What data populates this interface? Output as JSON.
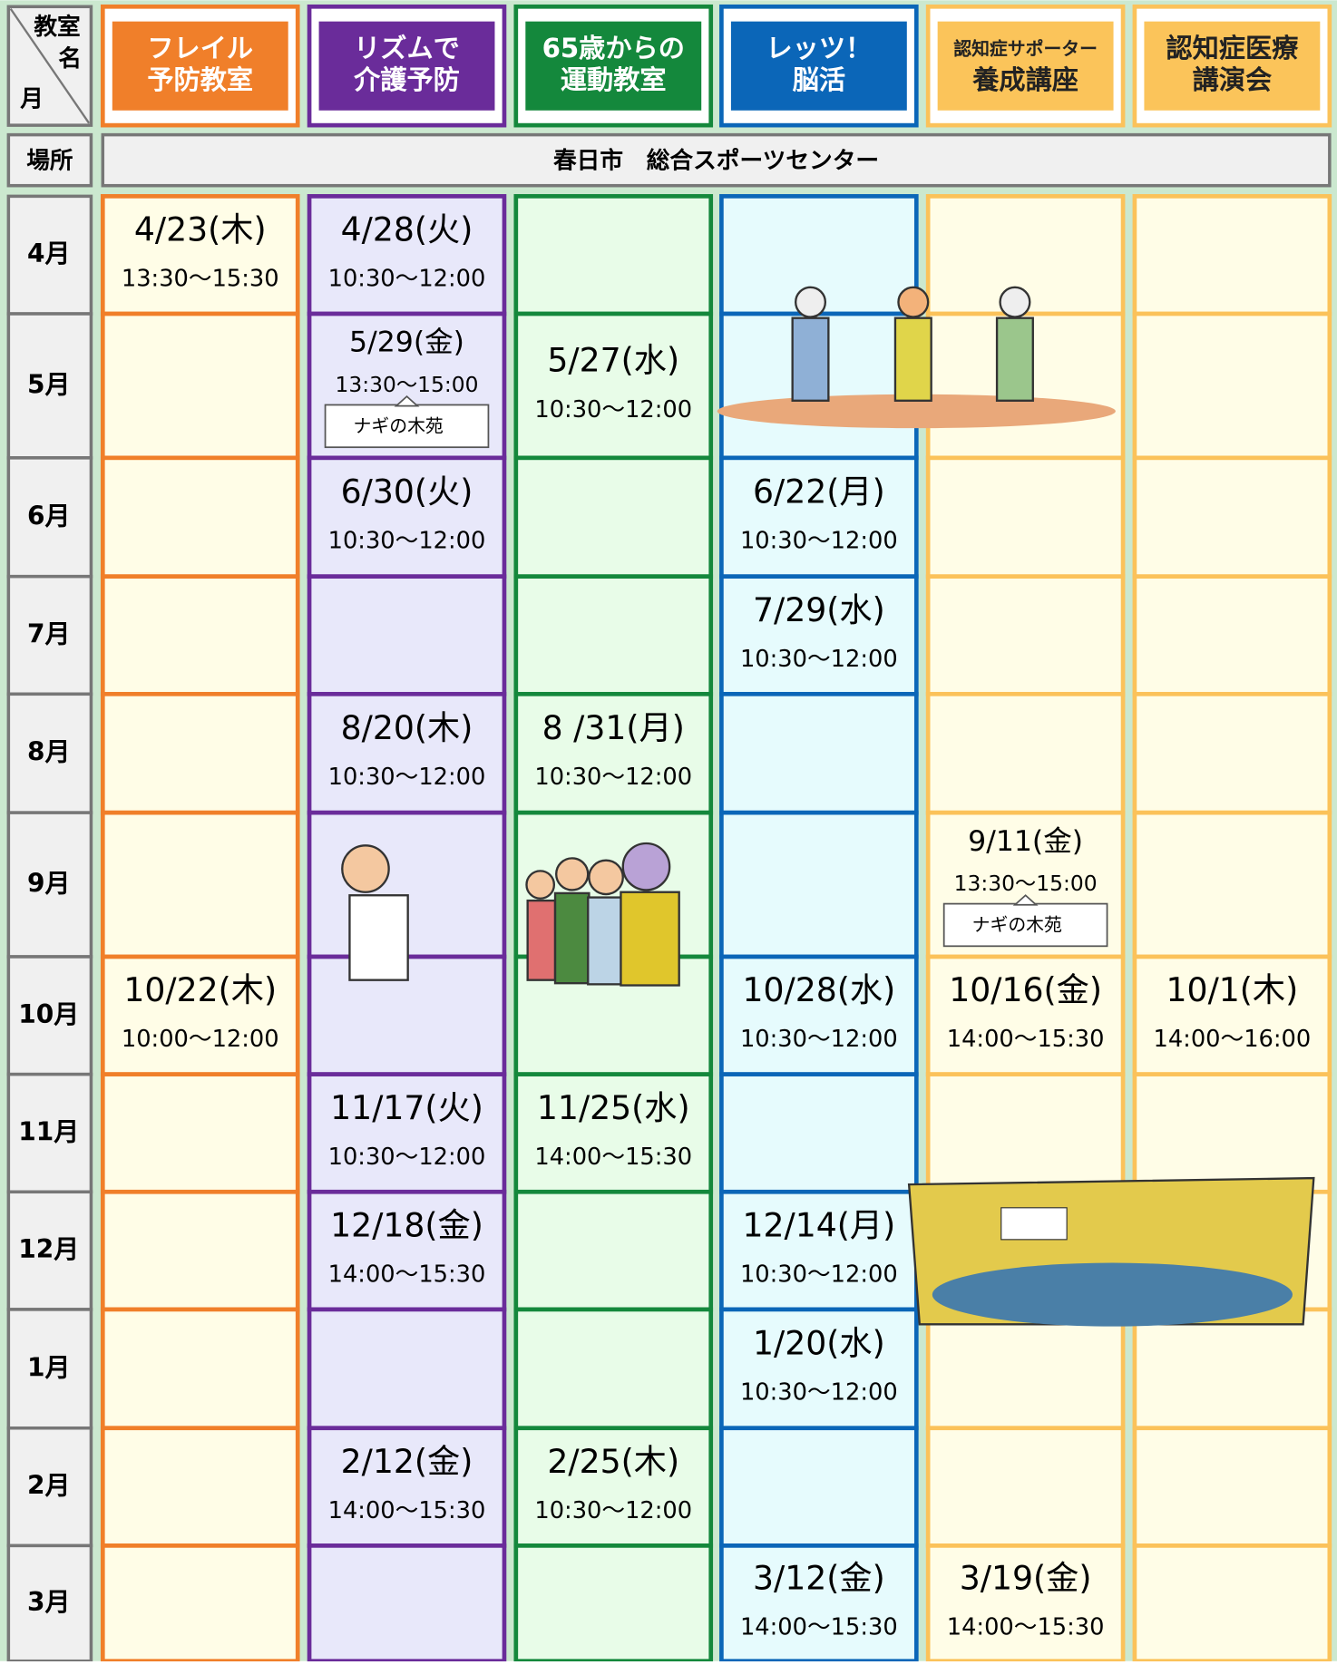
{
  "corner": {
    "top": "教室",
    "middle": "名",
    "bottom": "月"
  },
  "location": {
    "label": "場所",
    "value": "春日市　総合スポーツセンター"
  },
  "months": [
    "4月",
    "5月",
    "6月",
    "7月",
    "8月",
    "9月",
    "10月",
    "11月",
    "12月",
    "1月",
    "2月",
    "3月"
  ],
  "columns": [
    {
      "name": [
        "フレイル",
        "予防教室"
      ],
      "cells": [
        {
          "date": "4/23(木)",
          "time": "13:30〜15:30"
        },
        null,
        null,
        null,
        null,
        null,
        {
          "date": "10/22(木)",
          "time": "10:00〜12:00"
        },
        null,
        null,
        null,
        null,
        null
      ]
    },
    {
      "name": [
        "リズムで",
        "介護予防"
      ],
      "cells": [
        {
          "date": "4/28(火)",
          "time": "10:30〜12:00"
        },
        {
          "date": "5/29(金)",
          "time": "13:30〜15:00",
          "note": "ナギの木苑"
        },
        {
          "date": "6/30(火)",
          "time": "10:30〜12:00"
        },
        null,
        {
          "date": "8/20(木)",
          "time": "10:30〜12:00"
        },
        null,
        null,
        {
          "date": "11/17(火)",
          "time": "10:30〜12:00"
        },
        {
          "date": "12/18(金)",
          "time": "14:00〜15:30"
        },
        null,
        {
          "date": "2/12(金)",
          "time": "14:00〜15:30"
        },
        null
      ]
    },
    {
      "name": [
        "65歳からの",
        "運動教室"
      ],
      "cells": [
        null,
        {
          "date": "5/27(水)",
          "time": "10:30〜12:00"
        },
        null,
        null,
        {
          "date": "8 /31(月)",
          "time": "10:30〜12:00"
        },
        null,
        null,
        {
          "date": "11/25(水)",
          "time": "14:00〜15:30"
        },
        null,
        null,
        {
          "date": "2/25(木)",
          "time": "10:30〜12:00"
        },
        null
      ]
    },
    {
      "name": [
        "レッツ！",
        "脳活"
      ],
      "cells": [
        null,
        null,
        {
          "date": "6/22(月)",
          "time": "10:30〜12:00"
        },
        {
          "date": "7/29(水)",
          "time": "10:30〜12:00"
        },
        null,
        null,
        {
          "date": "10/28(水)",
          "time": "10:30〜12:00"
        },
        null,
        {
          "date": "12/14(月)",
          "time": "10:30〜12:00"
        },
        {
          "date": "1/20(水)",
          "time": "10:30〜12:00"
        },
        null,
        {
          "date": "3/12(金)",
          "time": "14:00〜15:30"
        }
      ]
    },
    {
      "name": [
        "認知症サポーター",
        "養成講座"
      ],
      "cells": [
        null,
        null,
        null,
        null,
        null,
        {
          "date": "9/11(金)",
          "time": "13:30〜15:00",
          "note": "ナギの木苑"
        },
        {
          "date": "10/16(金)",
          "time": "14:00〜15:30"
        },
        null,
        null,
        null,
        null,
        {
          "date": "3/19(金)",
          "time": "14:00〜15:30"
        }
      ]
    },
    {
      "name": [
        "認知症医療",
        "講演会"
      ],
      "cells": [
        null,
        null,
        null,
        null,
        null,
        null,
        {
          "date": "10/1(木)",
          "time": "14:00〜16:00"
        },
        null,
        null,
        null,
        null,
        null
      ]
    }
  ]
}
